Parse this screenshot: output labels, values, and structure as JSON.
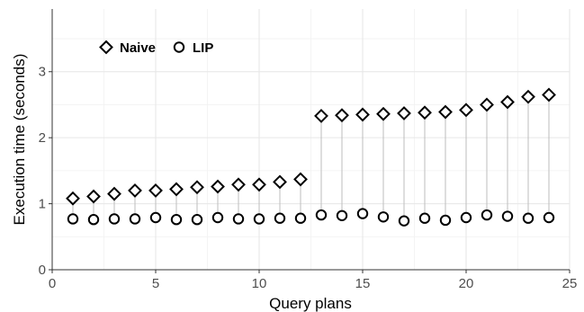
{
  "chart_data": {
    "type": "scatter",
    "xlabel": "Query plans",
    "ylabel": "Execution time (seconds)",
    "xlim": [
      0,
      25
    ],
    "ylim": [
      0,
      3.95
    ],
    "x_ticks": [
      0,
      5,
      10,
      15,
      20,
      25
    ],
    "y_ticks": [
      0,
      1,
      2,
      3
    ],
    "grid": true,
    "legend_position": "top-left",
    "x": [
      1,
      2,
      3,
      4,
      5,
      6,
      7,
      8,
      9,
      10,
      11,
      12,
      13,
      14,
      15,
      16,
      17,
      18,
      19,
      20,
      21,
      22,
      23,
      24
    ],
    "series": [
      {
        "name": "Naive",
        "marker": "diamond",
        "values": [
          1.08,
          1.11,
          1.15,
          1.2,
          1.2,
          1.22,
          1.25,
          1.26,
          1.29,
          1.29,
          1.33,
          1.37,
          2.33,
          2.34,
          2.35,
          2.36,
          2.37,
          2.38,
          2.39,
          2.42,
          2.5,
          2.54,
          2.62,
          2.65
        ]
      },
      {
        "name": "LIP",
        "marker": "circle",
        "values": [
          0.77,
          0.76,
          0.77,
          0.77,
          0.79,
          0.76,
          0.76,
          0.79,
          0.77,
          0.77,
          0.78,
          0.78,
          0.83,
          0.82,
          0.85,
          0.8,
          0.74,
          0.78,
          0.75,
          0.79,
          0.83,
          0.81,
          0.78,
          0.79
        ]
      }
    ],
    "colors": {
      "grid": "#e6e6e6",
      "connector": "#bdbdbd",
      "marker_stroke": "#000000",
      "marker_fill": "#ffffff",
      "axis": "#4d4d4d"
    }
  }
}
